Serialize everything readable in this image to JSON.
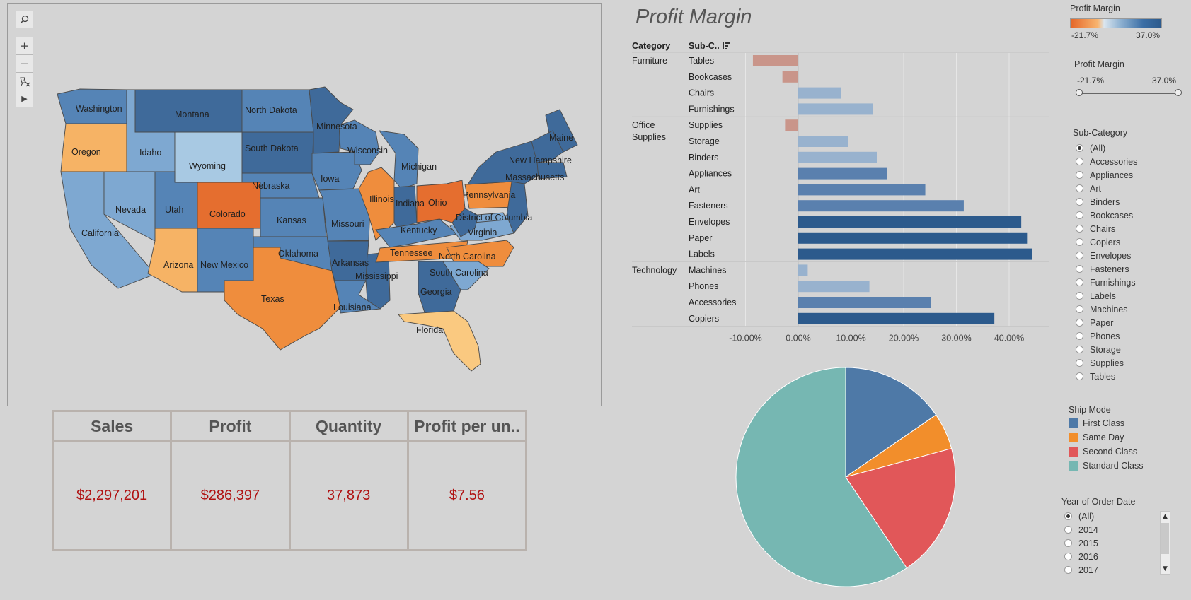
{
  "map": {
    "tools": {
      "search": "search-icon",
      "zoom_in": "+",
      "zoom_out": "−",
      "reset": "pin-clear-icon",
      "expand": "▶"
    },
    "colors": {
      "dark_blue": "#3f6a9a",
      "mid_blue": "#5584b6",
      "light_blue": "#7ea8d1",
      "pale_blue": "#a8c9e3",
      "dark_orange": "#e56e2f",
      "orange": "#ef8d3d",
      "light_orange": "#f6b365",
      "pale_orange": "#fac980",
      "border": "#4a4a4a"
    },
    "state_labels": [
      "Washington",
      "Oregon",
      "California",
      "Idaho",
      "Nevada",
      "Montana",
      "Wyoming",
      "Utah",
      "Arizona",
      "Colorado",
      "New Mexico",
      "North Dakota",
      "South Dakota",
      "Nebraska",
      "Kansas",
      "Oklahoma",
      "Texas",
      "Minnesota",
      "Iowa",
      "Missouri",
      "Arkansas",
      "Louisiana",
      "Wisconsin",
      "Illinois",
      "Mississippi",
      "Michigan",
      "Indiana",
      "Kentucky",
      "Tennessee",
      "Ohio",
      "Georgia",
      "Florida",
      "Pennsylvania",
      "Virginia",
      "District of Columbia",
      "North Carolina",
      "South Carolina",
      "Maine",
      "New Hampshire",
      "Massachusetts"
    ]
  },
  "kpi": {
    "cards": [
      {
        "label": "Sales",
        "value": "$2,297,201"
      },
      {
        "label": "Profit",
        "value": "$286,397"
      },
      {
        "label": "Quantity",
        "value": "37,873"
      },
      {
        "label": "Profit per un..",
        "value": "$7.56"
      }
    ]
  },
  "profit_margin_chart": {
    "title": "Profit Margin",
    "col_category": "Category",
    "col_subcategory": "Sub-C..",
    "sort_icon": "sort-icon"
  },
  "chart_data": [
    {
      "type": "bar",
      "title": "Profit Margin",
      "orientation": "horizontal",
      "groups": [
        {
          "category": "Furniture",
          "items": [
            {
              "label": "Tables",
              "value": -8.6
            },
            {
              "label": "Bookcases",
              "value": -3.0
            },
            {
              "label": "Chairs",
              "value": 8.1
            },
            {
              "label": "Furnishings",
              "value": 14.2
            }
          ]
        },
        {
          "category": "Office Supplies",
          "category_lines": [
            "Office",
            "Supplies"
          ],
          "items": [
            {
              "label": "Supplies",
              "value": -2.5
            },
            {
              "label": "Storage",
              "value": 9.5
            },
            {
              "label": "Binders",
              "value": 14.9
            },
            {
              "label": "Appliances",
              "value": 16.9
            },
            {
              "label": "Art",
              "value": 24.1
            },
            {
              "label": "Fasteners",
              "value": 31.4
            },
            {
              "label": "Envelopes",
              "value": 42.3
            },
            {
              "label": "Paper",
              "value": 43.4
            },
            {
              "label": "Labels",
              "value": 44.4
            }
          ]
        },
        {
          "category": "Technology",
          "items": [
            {
              "label": "Machines",
              "value": 1.8
            },
            {
              "label": "Phones",
              "value": 13.5
            },
            {
              "label": "Accessories",
              "value": 25.1
            },
            {
              "label": "Copiers",
              "value": 37.2
            }
          ]
        }
      ],
      "x_ticks": [
        "-10.00%",
        "0.00%",
        "10.00%",
        "20.00%",
        "30.00%",
        "40.00%"
      ],
      "xlim": [
        -10,
        47
      ],
      "grid": true,
      "color_scale": {
        "min": -21.7,
        "max": 37.0,
        "neg": "#c9958a",
        "pos_light": "#98b2ce",
        "pos_mid": "#5a80ae",
        "pos_dark": "#2c5a8c"
      }
    },
    {
      "type": "pie",
      "title": "",
      "series": [
        {
          "name": "First Class",
          "value": 15.4,
          "color": "#4e79a7"
        },
        {
          "name": "Same Day",
          "value": 5.4,
          "color": "#f28e2b"
        },
        {
          "name": "Second Class",
          "value": 19.8,
          "color": "#e15759"
        },
        {
          "name": "Standard Class",
          "value": 59.4,
          "color": "#76b7b2"
        }
      ]
    }
  ],
  "legend_profit_margin": {
    "title": "Profit Margin",
    "min": "-21.7%",
    "max": "37.0%"
  },
  "slider_profit_margin": {
    "title": "Profit Margin",
    "min": "-21.7%",
    "max": "37.0%"
  },
  "filter_subcategory": {
    "title": "Sub-Category",
    "options": [
      "(All)",
      "Accessories",
      "Appliances",
      "Art",
      "Binders",
      "Bookcases",
      "Chairs",
      "Copiers",
      "Envelopes",
      "Fasteners",
      "Furnishings",
      "Labels",
      "Machines",
      "Paper",
      "Phones",
      "Storage",
      "Supplies",
      "Tables"
    ],
    "selected": "(All)"
  },
  "legend_ship_mode": {
    "title": "Ship Mode",
    "items": [
      {
        "label": "First Class",
        "color": "#4e79a7"
      },
      {
        "label": "Same Day",
        "color": "#f28e2b"
      },
      {
        "label": "Second Class",
        "color": "#e15759"
      },
      {
        "label": "Standard Class",
        "color": "#76b7b2"
      }
    ]
  },
  "filter_year": {
    "title": "Year of Order Date",
    "options": [
      "(All)",
      "2014",
      "2015",
      "2016",
      "2017"
    ],
    "selected": "(All)",
    "scroll_up": "▲",
    "scroll_down": "▼"
  }
}
